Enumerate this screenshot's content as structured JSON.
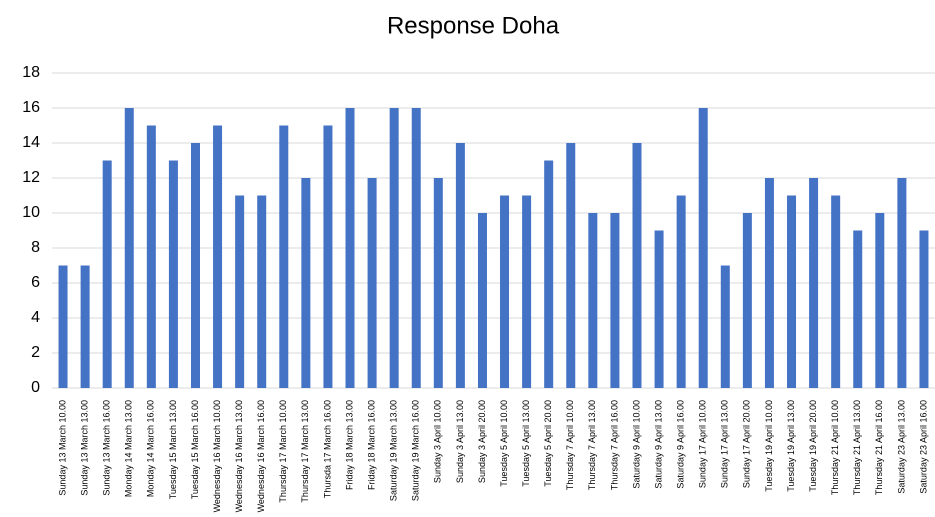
{
  "chart_data": {
    "type": "bar",
    "title": "Response Doha",
    "categories": [
      "Sunday 13 March 10.00",
      "Sunday 13 March 13.00",
      "Sunday 13 March 16.00",
      "Monday 14 March 13.00",
      "Monday 14 March 16.00",
      "Tuesday 15 March 13.00",
      "Tuesday 15 March 16.00",
      "Wednesday 16 March 10.00",
      "Wednesday 16 March 13.00",
      "Wednesday 16 March 16.00",
      "Thursday 17 March 10.00",
      "Thursday 17 March 13.00",
      "Thursda 17 March 16.00",
      "Friday 18 March 13.00",
      "Friday 18 March 16.00",
      "Saturday 19 March 13.00",
      "Saturday 19 March 16.00",
      "Sunday 3 April 10.00",
      "Sunday 3 April 13.00",
      "Sunday 3 April 20.00",
      "Tuesday 5 April 10.00",
      "Tuesday 5 April 13.00",
      "Tuesday 5 April 20.00",
      "Thursday 7 April 10.00",
      "Thursday 7 April 13.00",
      "Thursday 7 April 16.00",
      "Saturday 9 April 10.00",
      "Saturday 9 April 13.00",
      "Saturday 9 April 16.00",
      "Sunday 17 April 10.00",
      "Sunday 17 April 13.00",
      "Sunday 17 April 20.00",
      "Tuesday 19 April 10.00",
      "Tuesday 19 April 13.00",
      "Tuesday 19 April 20.00",
      "Thursday 21 April 10.00",
      "Thursday 21 April 13.00",
      "Thursday 21 April 16.00",
      "Saturday 23 April 13.00",
      "Saturday 23 April 16.00"
    ],
    "values": [
      7,
      7,
      13,
      16,
      15,
      13,
      14,
      15,
      11,
      11,
      15,
      12,
      15,
      16,
      12,
      16,
      16,
      12,
      14,
      10,
      11,
      11,
      13,
      14,
      10,
      10,
      14,
      9,
      11,
      16,
      7,
      10,
      12,
      11,
      12,
      11,
      9,
      10,
      12,
      9
    ],
    "color": "#4472c4",
    "ylim": [
      0,
      18
    ],
    "yticks": [
      0,
      2,
      4,
      6,
      8,
      10,
      12,
      14,
      16,
      18
    ],
    "grid": true
  }
}
